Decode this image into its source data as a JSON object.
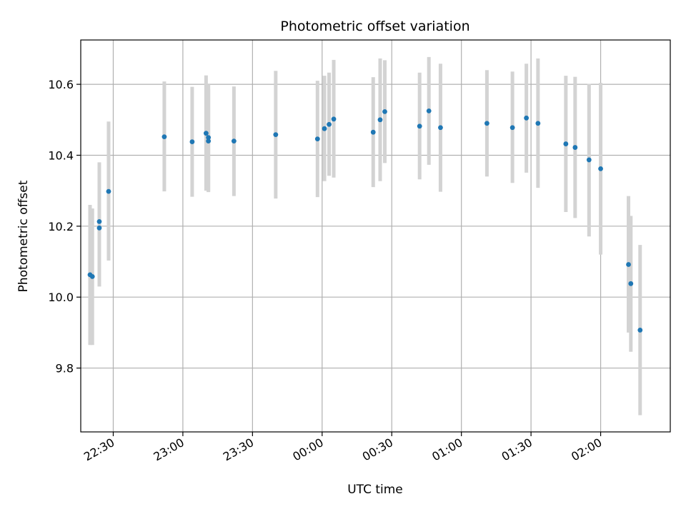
{
  "chart_data": {
    "type": "scatter",
    "title": "Photometric offset variation",
    "xlabel": "UTC time",
    "ylabel": "Photometric offset",
    "x_axis": "time of day (UTC), sequence crosses midnight",
    "xlim": [
      "22:16",
      "02:30"
    ],
    "ylim": [
      9.62,
      10.725
    ],
    "x_ticks": [
      "22:30",
      "23:00",
      "23:30",
      "00:00",
      "00:30",
      "01:00",
      "01:30",
      "02:00"
    ],
    "y_ticks": [
      "9.8",
      "10.0",
      "10.2",
      "10.4",
      "10.6"
    ],
    "grid": true,
    "colors": {
      "points": "#1f77b4",
      "error_bars": "#d3d3d3",
      "grid": "#b0b0b0"
    },
    "points": [
      {
        "time": "22:20",
        "y": 10.063,
        "ylow": 9.865,
        "yhigh": 10.26
      },
      {
        "time": "22:21",
        "y": 10.058,
        "ylow": 9.865,
        "yhigh": 10.25
      },
      {
        "time": "22:24",
        "y": 10.213,
        "ylow": 10.03,
        "yhigh": 10.38
      },
      {
        "time": "22:24",
        "y": 10.195,
        "ylow": 10.03,
        "yhigh": 10.36
      },
      {
        "time": "22:28",
        "y": 10.298,
        "ylow": 10.103,
        "yhigh": 10.495
      },
      {
        "time": "22:52",
        "y": 10.452,
        "ylow": 10.298,
        "yhigh": 10.608
      },
      {
        "time": "23:04",
        "y": 10.438,
        "ylow": 10.283,
        "yhigh": 10.593
      },
      {
        "time": "23:10",
        "y": 10.462,
        "ylow": 10.3,
        "yhigh": 10.625
      },
      {
        "time": "23:11",
        "y": 10.45,
        "ylow": 10.298,
        "yhigh": 10.6
      },
      {
        "time": "23:11",
        "y": 10.44,
        "ylow": 10.296,
        "yhigh": 10.586
      },
      {
        "time": "23:22",
        "y": 10.44,
        "ylow": 10.285,
        "yhigh": 10.594
      },
      {
        "time": "23:40",
        "y": 10.458,
        "ylow": 10.278,
        "yhigh": 10.638
      },
      {
        "time": "23:58",
        "y": 10.446,
        "ylow": 10.282,
        "yhigh": 10.61
      },
      {
        "time": "00:01",
        "y": 10.475,
        "ylow": 10.327,
        "yhigh": 10.624
      },
      {
        "time": "00:03",
        "y": 10.487,
        "ylow": 10.342,
        "yhigh": 10.633
      },
      {
        "time": "00:05",
        "y": 10.502,
        "ylow": 10.337,
        "yhigh": 10.669
      },
      {
        "time": "00:22",
        "y": 10.465,
        "ylow": 10.31,
        "yhigh": 10.62
      },
      {
        "time": "00:25",
        "y": 10.5,
        "ylow": 10.327,
        "yhigh": 10.673
      },
      {
        "time": "00:27",
        "y": 10.523,
        "ylow": 10.378,
        "yhigh": 10.668
      },
      {
        "time": "00:42",
        "y": 10.482,
        "ylow": 10.332,
        "yhigh": 10.633
      },
      {
        "time": "00:46",
        "y": 10.525,
        "ylow": 10.373,
        "yhigh": 10.677
      },
      {
        "time": "00:51",
        "y": 10.478,
        "ylow": 10.297,
        "yhigh": 10.658
      },
      {
        "time": "01:11",
        "y": 10.49,
        "ylow": 10.34,
        "yhigh": 10.64
      },
      {
        "time": "01:22",
        "y": 10.478,
        "ylow": 10.322,
        "yhigh": 10.636
      },
      {
        "time": "01:28",
        "y": 10.505,
        "ylow": 10.351,
        "yhigh": 10.658
      },
      {
        "time": "01:33",
        "y": 10.49,
        "ylow": 10.308,
        "yhigh": 10.673
      },
      {
        "time": "01:45",
        "y": 10.432,
        "ylow": 10.24,
        "yhigh": 10.624
      },
      {
        "time": "01:49",
        "y": 10.422,
        "ylow": 10.223,
        "yhigh": 10.621
      },
      {
        "time": "01:55",
        "y": 10.387,
        "ylow": 10.171,
        "yhigh": 10.601
      },
      {
        "time": "02:00",
        "y": 10.362,
        "ylow": 10.12,
        "yhigh": 10.604
      },
      {
        "time": "02:12",
        "y": 10.092,
        "ylow": 9.9,
        "yhigh": 10.285
      },
      {
        "time": "02:13",
        "y": 10.038,
        "ylow": 9.846,
        "yhigh": 10.229
      },
      {
        "time": "02:17",
        "y": 9.907,
        "ylow": 9.667,
        "yhigh": 10.147
      }
    ]
  }
}
